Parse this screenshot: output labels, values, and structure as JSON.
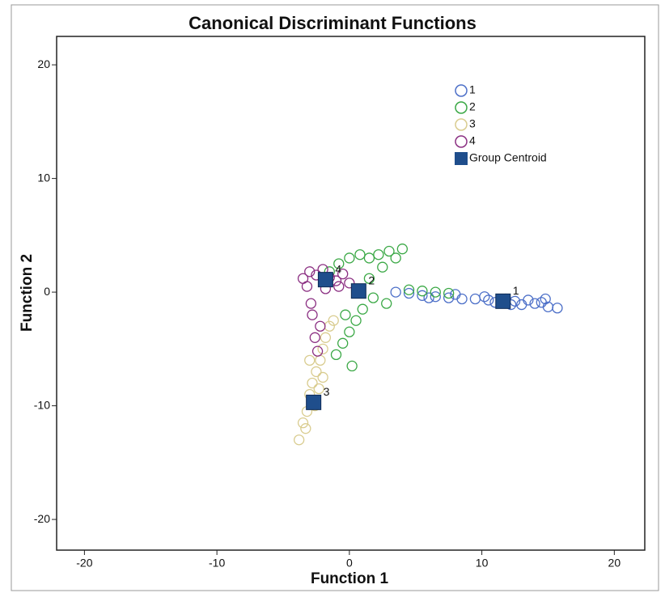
{
  "chart_data": {
    "type": "scatter",
    "title": "Canonical Discriminant Functions",
    "x_label": "Function 1",
    "y_label": "Function 2",
    "xlim": [
      -22.1,
      22.3
    ],
    "ylim": [
      -22.7,
      22.5
    ],
    "xticks": [
      -20,
      -10,
      0,
      10,
      20
    ],
    "yticks": [
      -20,
      -10,
      0,
      10,
      20
    ],
    "series": [
      {
        "name": "1",
        "color": "#4c6fc8",
        "x": [
          3.5,
          4.5,
          5.5,
          6.5,
          7.5,
          8.5,
          9.5,
          10.5,
          11.0,
          11.8,
          12.5,
          13.0,
          13.5,
          14.0,
          14.5,
          14.8,
          15.0,
          15.7,
          12.2,
          10.2,
          8.0,
          6.0
        ],
        "y": [
          0.0,
          -0.1,
          -0.3,
          -0.4,
          -0.5,
          -0.6,
          -0.6,
          -0.7,
          -0.9,
          -0.6,
          -0.8,
          -1.1,
          -0.7,
          -1.0,
          -0.9,
          -0.6,
          -1.3,
          -1.4,
          -1.1,
          -0.4,
          -0.2,
          -0.5
        ]
      },
      {
        "name": "2",
        "color": "#3aa845",
        "x": [
          -1.5,
          -0.8,
          0,
          0.8,
          1.5,
          2.2,
          3.0,
          3.5,
          4.0,
          4.5,
          5.5,
          6.5,
          7.5,
          2.5,
          1.5,
          1.0,
          0.5,
          0,
          -0.5,
          -1.0,
          1.8,
          2.8,
          0.2,
          -0.3
        ],
        "y": [
          1.8,
          2.5,
          3.0,
          3.3,
          3.0,
          3.3,
          3.6,
          3.0,
          3.8,
          0.2,
          0.1,
          0,
          -0.1,
          2.2,
          1.2,
          -1.5,
          -2.5,
          -3.5,
          -4.5,
          -5.5,
          -0.5,
          -1.0,
          -6.5,
          -2.0
        ]
      },
      {
        "name": "3",
        "color": "#d9cc8f",
        "x": [
          -3.8,
          -3.5,
          -3.2,
          -3.0,
          -2.8,
          -2.5,
          -2.2,
          -2.0,
          -1.8,
          -3.3,
          -2.6,
          -2.3,
          -1.5,
          -3.0,
          -2.0,
          -1.2
        ],
        "y": [
          -13,
          -11.5,
          -10.5,
          -9,
          -8,
          -7,
          -6,
          -5,
          -4,
          -12,
          -10,
          -8.5,
          -3,
          -6,
          -7.5,
          -2.5
        ]
      },
      {
        "name": "4",
        "color": "#8b2f82",
        "x": [
          -3.5,
          -3.0,
          -2.5,
          -2.0,
          -1.5,
          -1.0,
          -0.5,
          0,
          -2.8,
          -2.6,
          -2.4,
          -2.2,
          -3.2,
          -1.8,
          -0.8,
          -2.9
        ],
        "y": [
          1.2,
          1.8,
          1.5,
          2.0,
          1.3,
          1.0,
          1.6,
          0.8,
          -2,
          -4,
          -5.2,
          -3,
          0.5,
          0.3,
          0.5,
          -1.0
        ]
      }
    ],
    "centroids": {
      "name": "Group Centroid",
      "color": "#1f4e8c",
      "x": [
        11.6,
        0.7,
        -2.7,
        -1.8
      ],
      "y": [
        -0.8,
        0.1,
        -9.7,
        1.1
      ],
      "labels": [
        "1",
        "2",
        "3",
        "4"
      ]
    }
  }
}
